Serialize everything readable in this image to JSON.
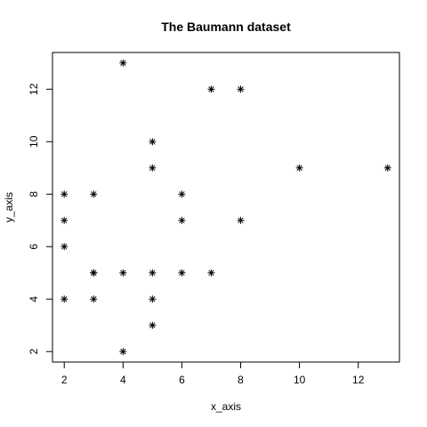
{
  "chart_data": {
    "type": "scatter",
    "title": "The Baumann dataset",
    "xlabel": "x_axis",
    "ylabel": "y_axis",
    "marker": "asterisk",
    "xlim": [
      1.6,
      13.4
    ],
    "ylim": [
      1.6,
      13.4
    ],
    "xticks": [
      2,
      4,
      6,
      8,
      10,
      12
    ],
    "yticks": [
      2,
      4,
      6,
      8,
      10,
      12
    ],
    "grid": false,
    "points": [
      {
        "x": 2,
        "y": 8
      },
      {
        "x": 2,
        "y": 7
      },
      {
        "x": 2,
        "y": 6
      },
      {
        "x": 2,
        "y": 4
      },
      {
        "x": 3,
        "y": 8
      },
      {
        "x": 3,
        "y": 5
      },
      {
        "x": 3,
        "y": 5
      },
      {
        "x": 3,
        "y": 4
      },
      {
        "x": 4,
        "y": 13
      },
      {
        "x": 4,
        "y": 5
      },
      {
        "x": 4,
        "y": 2
      },
      {
        "x": 5,
        "y": 10
      },
      {
        "x": 5,
        "y": 9
      },
      {
        "x": 5,
        "y": 5
      },
      {
        "x": 5,
        "y": 4
      },
      {
        "x": 5,
        "y": 3
      },
      {
        "x": 6,
        "y": 8
      },
      {
        "x": 6,
        "y": 7
      },
      {
        "x": 6,
        "y": 5
      },
      {
        "x": 7,
        "y": 12
      },
      {
        "x": 7,
        "y": 5
      },
      {
        "x": 8,
        "y": 12
      },
      {
        "x": 8,
        "y": 7
      },
      {
        "x": 10,
        "y": 9
      },
      {
        "x": 13,
        "y": 9
      }
    ]
  }
}
